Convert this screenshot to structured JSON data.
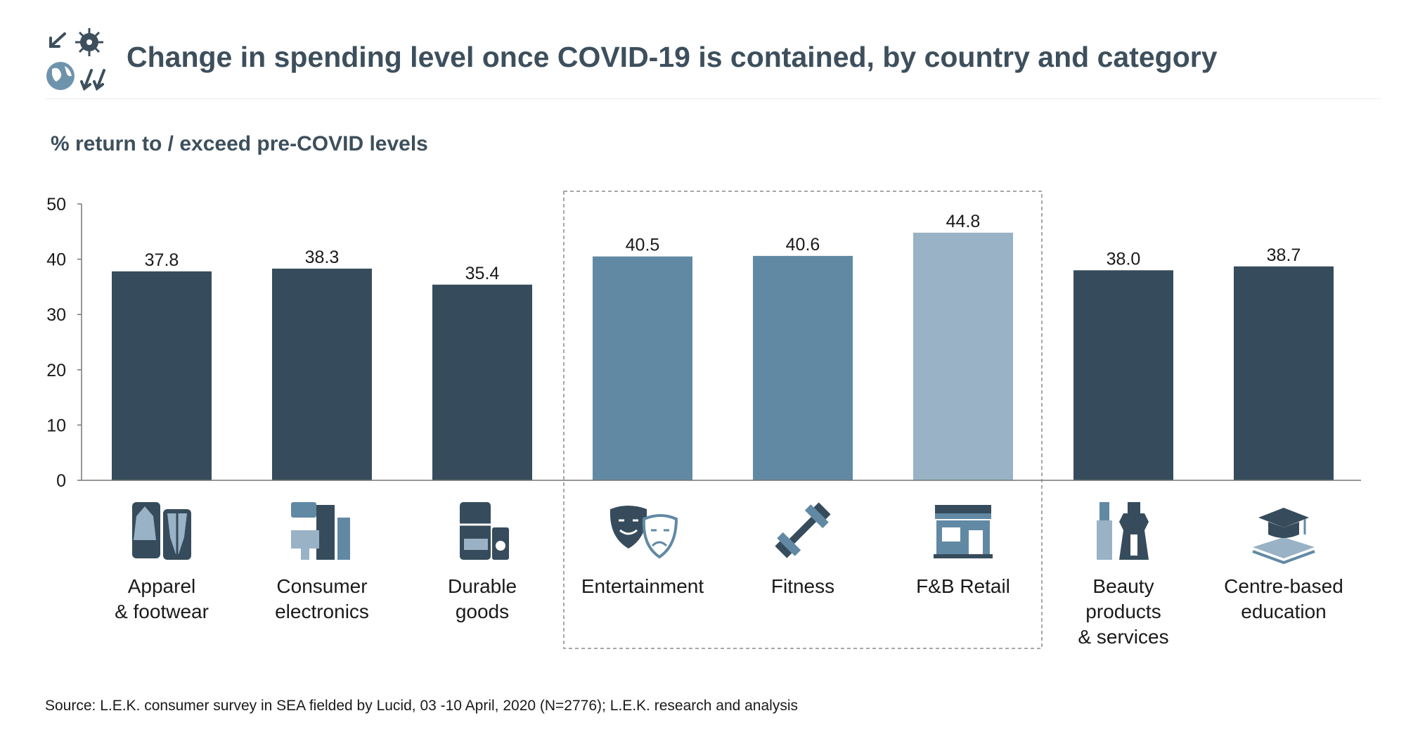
{
  "title": "Change in spending level once COVID-19 is contained, by country and category",
  "subtitle": "% return to / exceed pre-COVID levels",
  "source": "Source: L.E.K. consumer survey in SEA fielded by Lucid, 03 -10 April, 2020 (N=2776); L.E.K. research and analysis",
  "header_icon": "covid-globe-arrows-icon",
  "colors": {
    "dark": "#364c5c",
    "medium": "#6189a4",
    "light": "#99b2c5",
    "axis": "#777777",
    "title": "#3d4f5c"
  },
  "chart_data": {
    "type": "bar",
    "ylim": [
      0,
      50
    ],
    "yticks": [
      "0",
      "10",
      "20",
      "30",
      "40",
      "50"
    ],
    "grid": false,
    "categories": [
      [
        "Apparel",
        "& footwear"
      ],
      [
        "Consumer",
        "electronics"
      ],
      [
        "Durable",
        "goods"
      ],
      [
        "Entertainment"
      ],
      [
        "Fitness"
      ],
      [
        "F&B Retail"
      ],
      [
        "Beauty",
        "products",
        "& services"
      ],
      [
        "Centre-based",
        "education"
      ]
    ],
    "values": [
      37.8,
      38.3,
      35.4,
      40.5,
      40.6,
      44.8,
      38.0,
      38.7
    ],
    "value_labels": [
      "37.8",
      "38.3",
      "35.4",
      "40.5",
      "40.6",
      "44.8",
      "38.0",
      "38.7"
    ],
    "bar_colors": [
      "#364c5c",
      "#364c5c",
      "#364c5c",
      "#6189a4",
      "#6189a4",
      "#99b2c5",
      "#364c5c",
      "#364c5c"
    ],
    "icons": [
      "apparel-icon",
      "electronics-icon",
      "appliances-icon",
      "theatre-masks-icon",
      "dumbbell-icon",
      "storefront-icon",
      "cosmetics-icon",
      "graduation-cap-icon"
    ],
    "highlight_box": {
      "from_index": 3,
      "to_index": 5
    }
  }
}
